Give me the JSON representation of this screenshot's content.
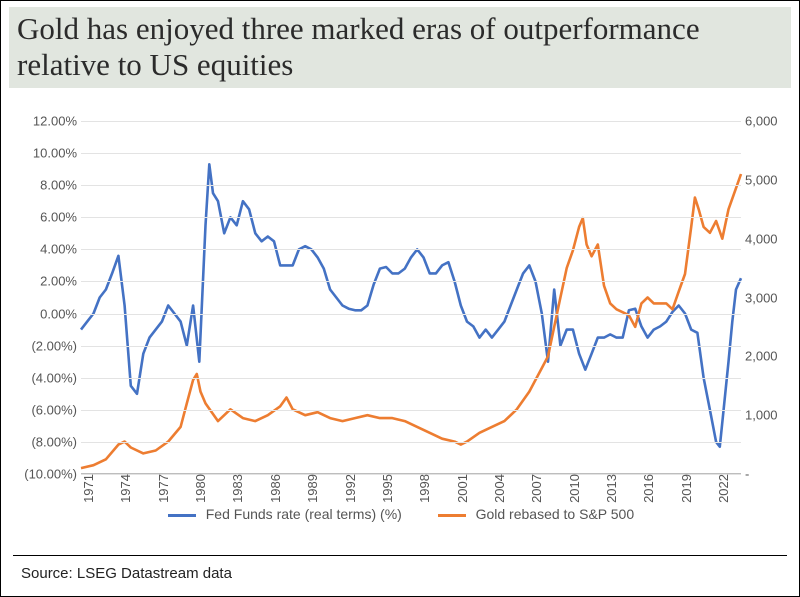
{
  "title": "Gold has enjoyed three marked eras of outperformance relative to US equities",
  "source": "Source: LSEG Datastream data",
  "chart": {
    "type": "dual-axis-line",
    "background_color": "#ffffff",
    "grid_color": "#e3e3e3",
    "axis_color": "#bdbdbd",
    "tick_font_family": "Arial",
    "tick_fontsize": 13,
    "x": {
      "min": 1971,
      "max": 2024,
      "tick_values": [
        1971,
        1974,
        1977,
        1980,
        1983,
        1986,
        1989,
        1992,
        1995,
        1998,
        2001,
        2004,
        2007,
        2010,
        2013,
        2016,
        2019,
        2022
      ],
      "tick_labels": [
        "1971",
        "1974",
        "1977",
        "1980",
        "1983",
        "1986",
        "1989",
        "1992",
        "1995",
        "1998",
        "2001",
        "2004",
        "2007",
        "2010",
        "2013",
        "2016",
        "2019",
        "2022"
      ],
      "tick_rotation_deg": -90
    },
    "y_left": {
      "min": -10,
      "max": 12,
      "step": 2,
      "tick_labels": [
        "(10.00%)",
        "(8.00%)",
        "(6.00%)",
        "(4.00%)",
        "(2.00%)",
        "0.00%",
        "2.00%",
        "4.00%",
        "6.00%",
        "8.00%",
        "10.00%",
        "12.00%"
      ]
    },
    "y_right": {
      "min": 0,
      "max": 6000,
      "step": 1000,
      "tick_labels": [
        "-",
        "1,000",
        "2,000",
        "3,000",
        "4,000",
        "5,000",
        "6,000"
      ]
    },
    "series": [
      {
        "name": "Fed Funds rate (real terms) (%)",
        "color": "#4472c4",
        "axis": "left",
        "line_width": 2.6,
        "data": [
          [
            1971,
            -1.0
          ],
          [
            1971.5,
            -0.5
          ],
          [
            1972,
            0.0
          ],
          [
            1972.5,
            1.0
          ],
          [
            1973,
            1.5
          ],
          [
            1973.5,
            2.5
          ],
          [
            1974,
            3.6
          ],
          [
            1974.5,
            0.5
          ],
          [
            1975,
            -4.5
          ],
          [
            1975.5,
            -5.0
          ],
          [
            1976,
            -2.5
          ],
          [
            1976.5,
            -1.5
          ],
          [
            1977,
            -1.0
          ],
          [
            1977.5,
            -0.5
          ],
          [
            1978,
            0.5
          ],
          [
            1978.5,
            0.0
          ],
          [
            1979,
            -0.5
          ],
          [
            1979.5,
            -2.0
          ],
          [
            1980,
            0.5
          ],
          [
            1980.5,
            -3.0
          ],
          [
            1981,
            5.5
          ],
          [
            1981.3,
            9.3
          ],
          [
            1981.6,
            7.5
          ],
          [
            1982,
            7.0
          ],
          [
            1982.5,
            5.0
          ],
          [
            1983,
            6.0
          ],
          [
            1983.5,
            5.5
          ],
          [
            1984,
            7.0
          ],
          [
            1984.5,
            6.5
          ],
          [
            1985,
            5.0
          ],
          [
            1985.5,
            4.5
          ],
          [
            1986,
            4.8
          ],
          [
            1986.5,
            4.5
          ],
          [
            1987,
            3.0
          ],
          [
            1987.5,
            3.0
          ],
          [
            1988,
            3.0
          ],
          [
            1988.5,
            4.0
          ],
          [
            1989,
            4.2
          ],
          [
            1989.5,
            4.0
          ],
          [
            1990,
            3.5
          ],
          [
            1990.5,
            2.8
          ],
          [
            1991,
            1.5
          ],
          [
            1991.5,
            1.0
          ],
          [
            1992,
            0.5
          ],
          [
            1992.5,
            0.3
          ],
          [
            1993,
            0.2
          ],
          [
            1993.5,
            0.2
          ],
          [
            1994,
            0.5
          ],
          [
            1994.5,
            1.8
          ],
          [
            1995,
            2.8
          ],
          [
            1995.5,
            2.9
          ],
          [
            1996,
            2.5
          ],
          [
            1996.5,
            2.5
          ],
          [
            1997,
            2.8
          ],
          [
            1997.5,
            3.5
          ],
          [
            1998,
            4.0
          ],
          [
            1998.5,
            3.5
          ],
          [
            1999,
            2.5
          ],
          [
            1999.5,
            2.5
          ],
          [
            2000,
            3.0
          ],
          [
            2000.5,
            3.2
          ],
          [
            2001,
            2.0
          ],
          [
            2001.5,
            0.5
          ],
          [
            2002,
            -0.5
          ],
          [
            2002.5,
            -0.8
          ],
          [
            2003,
            -1.5
          ],
          [
            2003.5,
            -1.0
          ],
          [
            2004,
            -1.5
          ],
          [
            2004.5,
            -1.0
          ],
          [
            2005,
            -0.5
          ],
          [
            2005.5,
            0.5
          ],
          [
            2006,
            1.5
          ],
          [
            2006.5,
            2.5
          ],
          [
            2007,
            3.0
          ],
          [
            2007.5,
            2.0
          ],
          [
            2008,
            0.0
          ],
          [
            2008.5,
            -3.0
          ],
          [
            2009,
            1.5
          ],
          [
            2009.5,
            -2.0
          ],
          [
            2010,
            -1.0
          ],
          [
            2010.5,
            -1.0
          ],
          [
            2011,
            -2.5
          ],
          [
            2011.5,
            -3.5
          ],
          [
            2012,
            -2.5
          ],
          [
            2012.5,
            -1.5
          ],
          [
            2013,
            -1.5
          ],
          [
            2013.5,
            -1.3
          ],
          [
            2014,
            -1.5
          ],
          [
            2014.5,
            -1.5
          ],
          [
            2015,
            0.2
          ],
          [
            2015.5,
            0.3
          ],
          [
            2016,
            -0.8
          ],
          [
            2016.5,
            -1.5
          ],
          [
            2017,
            -1.0
          ],
          [
            2017.5,
            -0.8
          ],
          [
            2018,
            -0.5
          ],
          [
            2018.5,
            0.1
          ],
          [
            2019,
            0.5
          ],
          [
            2019.5,
            0.0
          ],
          [
            2020,
            -1.0
          ],
          [
            2020.5,
            -1.2
          ],
          [
            2021,
            -4.0
          ],
          [
            2021.5,
            -6.0
          ],
          [
            2022,
            -8.0
          ],
          [
            2022.3,
            -8.3
          ],
          [
            2022.6,
            -6.0
          ],
          [
            2023,
            -3.0
          ],
          [
            2023.3,
            -0.5
          ],
          [
            2023.6,
            1.5
          ],
          [
            2024,
            2.2
          ]
        ]
      },
      {
        "name": "Gold rebased to S&P 500",
        "color": "#ed7d31",
        "axis": "right",
        "line_width": 2.6,
        "data": [
          [
            1971,
            100
          ],
          [
            1972,
            150
          ],
          [
            1973,
            250
          ],
          [
            1974,
            500
          ],
          [
            1974.5,
            550
          ],
          [
            1975,
            450
          ],
          [
            1976,
            350
          ],
          [
            1977,
            400
          ],
          [
            1978,
            550
          ],
          [
            1979,
            800
          ],
          [
            1979.5,
            1200
          ],
          [
            1980,
            1600
          ],
          [
            1980.3,
            1700
          ],
          [
            1980.6,
            1400
          ],
          [
            1981,
            1200
          ],
          [
            1982,
            900
          ],
          [
            1983,
            1100
          ],
          [
            1984,
            950
          ],
          [
            1985,
            900
          ],
          [
            1986,
            1000
          ],
          [
            1987,
            1150
          ],
          [
            1987.5,
            1300
          ],
          [
            1988,
            1100
          ],
          [
            1989,
            1000
          ],
          [
            1990,
            1050
          ],
          [
            1991,
            950
          ],
          [
            1992,
            900
          ],
          [
            1993,
            950
          ],
          [
            1994,
            1000
          ],
          [
            1995,
            950
          ],
          [
            1996,
            950
          ],
          [
            1997,
            900
          ],
          [
            1998,
            800
          ],
          [
            1999,
            700
          ],
          [
            2000,
            600
          ],
          [
            2001,
            550
          ],
          [
            2001.5,
            500
          ],
          [
            2002,
            550
          ],
          [
            2003,
            700
          ],
          [
            2004,
            800
          ],
          [
            2005,
            900
          ],
          [
            2006,
            1100
          ],
          [
            2007,
            1400
          ],
          [
            2008,
            1800
          ],
          [
            2008.5,
            2000
          ],
          [
            2009,
            2500
          ],
          [
            2009.5,
            3000
          ],
          [
            2010,
            3500
          ],
          [
            2010.5,
            3800
          ],
          [
            2011,
            4200
          ],
          [
            2011.3,
            4350
          ],
          [
            2011.6,
            3900
          ],
          [
            2012,
            3700
          ],
          [
            2012.5,
            3900
          ],
          [
            2013,
            3200
          ],
          [
            2013.5,
            2900
          ],
          [
            2014,
            2800
          ],
          [
            2015,
            2700
          ],
          [
            2015.5,
            2500
          ],
          [
            2016,
            2900
          ],
          [
            2016.5,
            3000
          ],
          [
            2017,
            2900
          ],
          [
            2018,
            2900
          ],
          [
            2018.5,
            2800
          ],
          [
            2019,
            3100
          ],
          [
            2019.5,
            3400
          ],
          [
            2020,
            4200
          ],
          [
            2020.3,
            4700
          ],
          [
            2020.6,
            4500
          ],
          [
            2021,
            4200
          ],
          [
            2021.5,
            4100
          ],
          [
            2022,
            4300
          ],
          [
            2022.5,
            4000
          ],
          [
            2023,
            4500
          ],
          [
            2023.5,
            4800
          ],
          [
            2024,
            5100
          ]
        ]
      }
    ],
    "legend": {
      "position": "bottom",
      "items": [
        {
          "label": "Fed Funds rate (real terms) (%)",
          "color": "#4472c4"
        },
        {
          "label": "Gold rebased to S&P 500",
          "color": "#ed7d31"
        }
      ]
    }
  }
}
